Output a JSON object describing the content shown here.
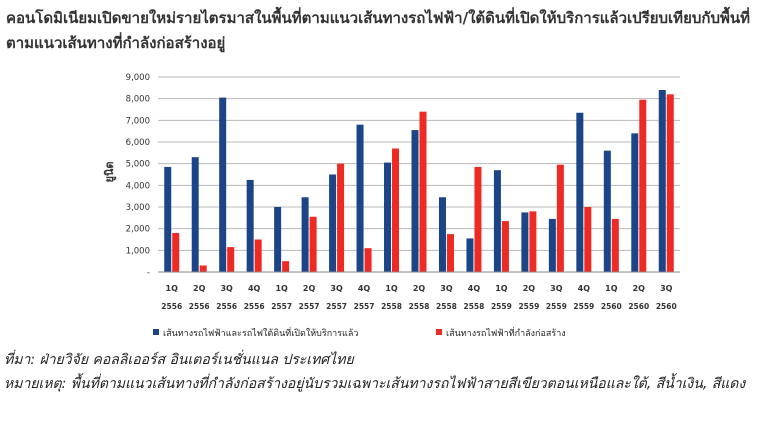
{
  "title": "คอนโดมิเนียมเปิดขายใหม่รายไตรมาสในพื้นที่ตามแนวเส้นทางรถไฟฟ้า/ใต้ดินที่เปิดให้บริการแล้วเปรียบเทียบกับพื้นที่ตามแนวเส้นทางที่กำลังก่อสร้างอยู่",
  "notes": {
    "source": "ที่มา: ฝ่ายวิจัย คอลลิเออร์ส อินเตอร์เนชั่นแนล ประเทศไทย",
    "remark": "หมายเหตุ: พื้นที่ตามแนวเส้นทางที่กำลังก่อสร้างอยู่นับรวมเฉพาะเส้นทางรถไฟฟ้าสายสีเขียวตอนเหนือและใต้, สีน้ำเงิน, สีแดง"
  },
  "colors": {
    "series1": "#1c4587",
    "series2": "#ee2a24",
    "grid": "#b8b8b8"
  },
  "chart_data": {
    "type": "bar",
    "ylabel": "ยูนิต",
    "ylim": [
      0,
      9000
    ],
    "yticks": [
      "-",
      "1,000",
      "2,000",
      "3,000",
      "4,000",
      "5,000",
      "6,000",
      "7,000",
      "8,000",
      "9,000"
    ],
    "grid": true,
    "legend_position": "bottom",
    "categories": [
      [
        "1Q",
        "2556"
      ],
      [
        "2Q",
        "2556"
      ],
      [
        "3Q",
        "2556"
      ],
      [
        "4Q",
        "2556"
      ],
      [
        "1Q",
        "2557"
      ],
      [
        "2Q",
        "2557"
      ],
      [
        "3Q",
        "2557"
      ],
      [
        "4Q",
        "2557"
      ],
      [
        "1Q",
        "2558"
      ],
      [
        "2Q",
        "2558"
      ],
      [
        "3Q",
        "2558"
      ],
      [
        "4Q",
        "2558"
      ],
      [
        "1Q",
        "2559"
      ],
      [
        "2Q",
        "2559"
      ],
      [
        "3Q",
        "2559"
      ],
      [
        "4Q",
        "2559"
      ],
      [
        "1Q",
        "2560"
      ],
      [
        "2Q",
        "2560"
      ],
      [
        "3Q",
        "2560"
      ]
    ],
    "series": [
      {
        "name": "เส้นทางรถไฟฟ้าและรถไฟใต้ดินที่เปิดให้บริการแล้ว",
        "values": [
          4850,
          5300,
          8050,
          4250,
          3000,
          3450,
          4500,
          6800,
          5050,
          6550,
          3450,
          1550,
          4700,
          2750,
          2450,
          7350,
          5600,
          6400,
          8400
        ]
      },
      {
        "name": "เส้นทางรถไฟฟ้าที่กำลังก่อสร้าง",
        "values": [
          1800,
          300,
          1150,
          1500,
          500,
          2550,
          5000,
          1100,
          5700,
          7400,
          1750,
          4850,
          2350,
          2800,
          4950,
          3000,
          2450,
          7950,
          8200
        ]
      }
    ]
  }
}
